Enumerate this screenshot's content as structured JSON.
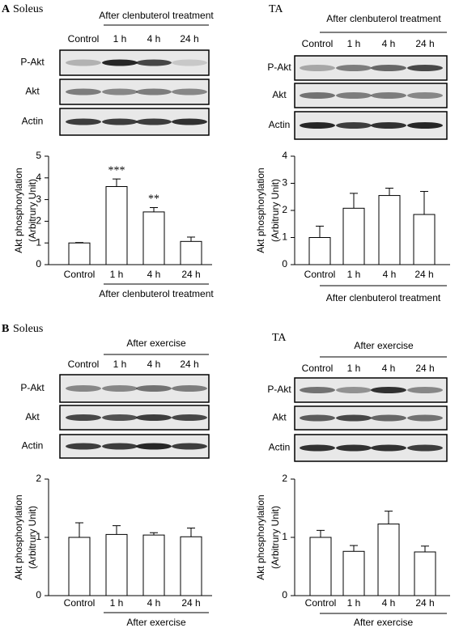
{
  "panels": [
    {
      "letter": "A",
      "muscle": "Soleus",
      "treatment": "After clenbuterol treatment",
      "lanes": [
        "Control",
        "1 h",
        "4 h",
        "24 h"
      ],
      "blots": [
        "P-Akt",
        "Akt",
        "Actin"
      ]
    },
    {
      "muscle": "TA",
      "treatment": "After clenbuterol treatment",
      "lanes": [
        "Control",
        "1 h",
        "4 h",
        "24 h"
      ],
      "blots": [
        "P-Akt",
        "Akt",
        "Actin"
      ]
    },
    {
      "letter": "B",
      "muscle": "Soleus",
      "treatment": "After exercise",
      "lanes": [
        "Control",
        "1 h",
        "4 h",
        "24 h"
      ],
      "blots": [
        "P-Akt",
        "Akt",
        "Actin"
      ]
    },
    {
      "muscle": "TA",
      "treatment": "After exercise",
      "lanes": [
        "Control",
        "1 h",
        "4 h",
        "24 h"
      ],
      "blots": [
        "P-Akt",
        "Akt",
        "Actin"
      ]
    }
  ],
  "chart_data": [
    {
      "type": "bar",
      "ylabel": [
        "Akt phosphorylation",
        "(Arbitrury Unit)"
      ],
      "xlabel": "After clenbuterol treatment",
      "categories": [
        "Control",
        "1 h",
        "4 h",
        "24 h"
      ],
      "values": [
        1.0,
        3.6,
        2.43,
        1.07
      ],
      "errors": [
        0.02,
        0.35,
        0.2,
        0.2
      ],
      "significance": [
        null,
        "***",
        "**",
        null
      ],
      "ylim": [
        0,
        5
      ],
      "yticks": [
        0,
        1,
        2,
        3,
        4,
        5
      ],
      "color": "#ffffff"
    },
    {
      "type": "bar",
      "ylabel": [
        "Akt phosphorylation",
        "(Arbitrury Unit)"
      ],
      "xlabel": "After clenbuterol treatment",
      "categories": [
        "Control",
        "1 h",
        "4 h",
        "24 h"
      ],
      "values": [
        1.0,
        2.08,
        2.55,
        1.85
      ],
      "errors": [
        0.42,
        0.55,
        0.27,
        0.85
      ],
      "ylim": [
        0,
        4
      ],
      "yticks": [
        0,
        1,
        2,
        3,
        4
      ],
      "color": "#ffffff"
    },
    {
      "type": "bar",
      "ylabel": [
        "Akt phosphorylation",
        "(Arbitrury Unit)"
      ],
      "xlabel": "After exercise",
      "categories": [
        "Control",
        "1 h",
        "4 h",
        "24 h"
      ],
      "values": [
        1.0,
        1.05,
        1.04,
        1.01
      ],
      "errors": [
        0.25,
        0.15,
        0.04,
        0.15
      ],
      "ylim": [
        0,
        2
      ],
      "yticks": [
        0,
        1,
        2
      ],
      "color": "#ffffff"
    },
    {
      "type": "bar",
      "ylabel": [
        "Akt phosphorylation",
        "(Arbitrury Unit)"
      ],
      "xlabel": "After exercise",
      "categories": [
        "Control",
        "1 h",
        "4 h",
        "24 h"
      ],
      "values": [
        1.0,
        0.76,
        1.23,
        0.75
      ],
      "errors": [
        0.12,
        0.1,
        0.22,
        0.1
      ],
      "ylim": [
        0,
        2
      ],
      "yticks": [
        0,
        1,
        2
      ],
      "color": "#ffffff"
    }
  ]
}
